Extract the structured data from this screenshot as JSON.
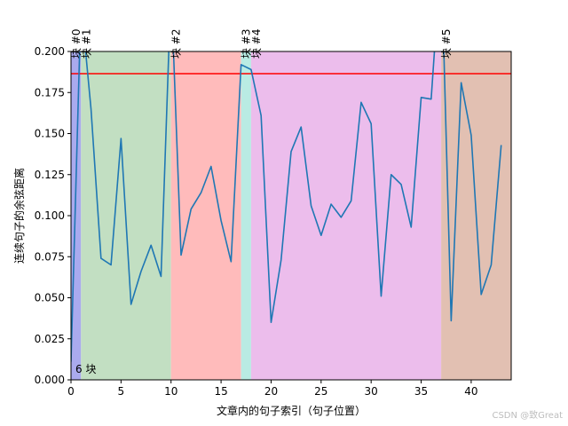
{
  "chart_data": {
    "type": "line",
    "xlabel": "文章内的句子索引（句子位置）",
    "ylabel": "连续句子的余弦距离",
    "xlim": [
      0,
      44
    ],
    "ylim": [
      0,
      0.2
    ],
    "xticks": [
      0,
      5,
      10,
      15,
      20,
      25,
      30,
      35,
      40
    ],
    "yticks": [
      0.0,
      0.025,
      0.05,
      0.075,
      0.1,
      0.125,
      0.15,
      0.175,
      0.2
    ],
    "ytick_labels": [
      "0.000",
      "0.025",
      "0.050",
      "0.075",
      "0.100",
      "0.125",
      "0.150",
      "0.175",
      "0.200"
    ],
    "grid": false,
    "series": [
      {
        "color": "#1f77b4",
        "x": [
          0,
          1,
          2,
          3,
          4,
          5,
          6,
          7,
          8,
          9,
          10,
          11,
          12,
          13,
          14,
          15,
          16,
          17,
          18,
          19,
          20,
          21,
          22,
          23,
          24,
          25,
          26,
          27,
          28,
          29,
          30,
          31,
          32,
          33,
          34,
          35,
          36,
          37,
          38,
          39,
          40,
          41,
          42,
          43
        ],
        "y": [
          0.011,
          0.23,
          0.165,
          0.074,
          0.07,
          0.147,
          0.046,
          0.066,
          0.082,
          0.063,
          0.24,
          0.076,
          0.104,
          0.114,
          0.13,
          0.097,
          0.072,
          0.192,
          0.189,
          0.161,
          0.035,
          0.073,
          0.139,
          0.154,
          0.106,
          0.088,
          0.107,
          0.099,
          0.109,
          0.169,
          0.156,
          0.051,
          0.125,
          0.119,
          0.093,
          0.172,
          0.171,
          0.26,
          0.036,
          0.181,
          0.149,
          0.052,
          0.07,
          0.143
        ]
      }
    ],
    "threshold": {
      "value": 0.1865,
      "color": "#ff0000"
    },
    "chunks": [
      {
        "label": "块 #0",
        "start": 0,
        "end": 1,
        "color": "#aaaaee"
      },
      {
        "label": "块 #1",
        "start": 1,
        "end": 10,
        "color": "#c2dfc2"
      },
      {
        "label": "块 #2",
        "start": 10,
        "end": 17,
        "color": "#ffbbbb"
      },
      {
        "label": "块 #3",
        "start": 17,
        "end": 18,
        "color": "#b9ebe3"
      },
      {
        "label": "块 #4",
        "start": 18,
        "end": 37,
        "color": "#ecbdec"
      },
      {
        "label": "块 #5",
        "start": 37,
        "end": 44,
        "color": "#e2c0b2"
      }
    ],
    "chunk_count_label": "6 块"
  },
  "watermark": "CSDN @致Great"
}
